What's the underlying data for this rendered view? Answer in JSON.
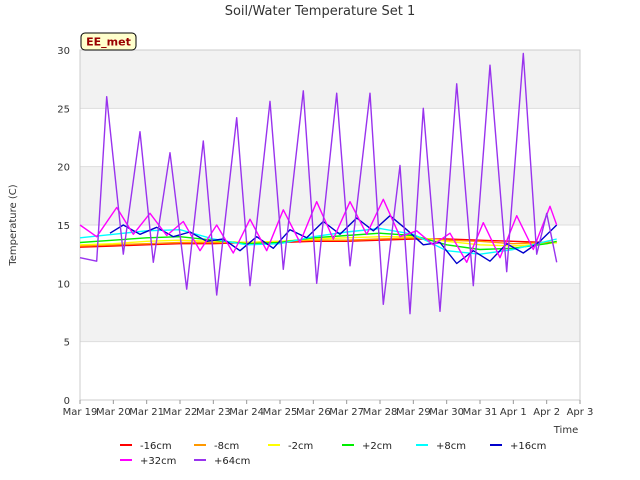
{
  "chart_data": {
    "type": "line",
    "title": "Soil/Water Temperature Set 1",
    "xlabel": "Time",
    "ylabel": "Temperature (C)",
    "badge": "EE_met",
    "ylim": [
      0,
      30
    ],
    "xlim": [
      "Mar 19",
      "Apr 3"
    ],
    "x_ticks": [
      "Mar 19",
      "Mar 20",
      "Mar 21",
      "Mar 22",
      "Mar 23",
      "Mar 24",
      "Mar 25",
      "Mar 26",
      "Mar 27",
      "Mar 28",
      "Mar 29",
      "Mar 30",
      "Mar 31",
      "Apr 1",
      "Apr 2",
      "Apr 3"
    ],
    "y_ticks": [
      0,
      5,
      10,
      15,
      20,
      25,
      30
    ],
    "grid": "horizontal bands",
    "legend_position": "bottom",
    "series": [
      {
        "name": "-16cm",
        "color": "#ff0000",
        "x": [
          "Mar 19",
          "Mar 20",
          "Mar 21",
          "Mar 22",
          "Mar 23",
          "Mar 24",
          "Mar 25",
          "Mar 26",
          "Mar 27",
          "Mar 28",
          "Mar 29",
          "Mar 30",
          "Mar 31",
          "Apr 1",
          "Apr 2",
          "Apr 2.3"
        ],
        "y": [
          13.1,
          13.2,
          13.3,
          13.4,
          13.4,
          13.5,
          13.5,
          13.6,
          13.6,
          13.7,
          13.8,
          13.8,
          13.7,
          13.6,
          13.5,
          13.5
        ]
      },
      {
        "name": "-8cm",
        "color": "#ff9900",
        "x": [
          "Mar 19",
          "Mar 20",
          "Mar 21",
          "Mar 22",
          "Mar 23",
          "Mar 24",
          "Mar 25",
          "Mar 26",
          "Mar 27",
          "Mar 28",
          "Mar 29",
          "Mar 30",
          "Mar 31",
          "Apr 1",
          "Apr 2",
          "Apr 2.3"
        ],
        "y": [
          13.2,
          13.3,
          13.4,
          13.5,
          13.5,
          13.5,
          13.6,
          13.7,
          13.7,
          13.8,
          13.9,
          13.7,
          13.6,
          13.4,
          13.5,
          13.5
        ]
      },
      {
        "name": "-2cm",
        "color": "#ffff00",
        "x": [
          "Mar 19",
          "Mar 20",
          "Mar 21",
          "Mar 22",
          "Mar 23",
          "Mar 24",
          "Mar 25",
          "Mar 26",
          "Mar 27",
          "Mar 28",
          "Mar 29",
          "Mar 30",
          "Mar 31",
          "Apr 1",
          "Apr 2",
          "Apr 2.3"
        ],
        "y": [
          13.3,
          13.4,
          13.6,
          13.7,
          13.6,
          13.5,
          13.6,
          13.8,
          13.9,
          14.0,
          14.0,
          13.6,
          13.3,
          13.2,
          13.4,
          13.5
        ]
      },
      {
        "name": "+2cm",
        "color": "#00ee00",
        "x": [
          "Mar 19",
          "Mar 20",
          "Mar 21",
          "Mar 22",
          "Mar 23",
          "Mar 24",
          "Mar 25",
          "Mar 26",
          "Mar 27",
          "Mar 28",
          "Mar 29",
          "Mar 30",
          "Mar 31",
          "Apr 1",
          "Apr 2",
          "Apr 2.3"
        ],
        "y": [
          13.5,
          13.7,
          13.9,
          14.0,
          13.7,
          13.4,
          13.5,
          13.9,
          14.1,
          14.3,
          14.1,
          13.3,
          12.9,
          13.0,
          13.4,
          13.6
        ]
      },
      {
        "name": "+8cm",
        "color": "#00ffff",
        "x": [
          "Mar 19",
          "Mar 20",
          "Mar 21",
          "Mar 22",
          "Mar 23",
          "Mar 24",
          "Mar 25",
          "Mar 26",
          "Mar 27",
          "Mar 28",
          "Mar 29",
          "Mar 30",
          "Mar 31",
          "Apr 1",
          "Apr 2",
          "Apr 2.3"
        ],
        "y": [
          13.9,
          14.2,
          14.5,
          14.6,
          13.8,
          13.3,
          13.4,
          14.0,
          14.4,
          14.7,
          14.2,
          12.8,
          12.5,
          12.9,
          13.6,
          13.8
        ]
      },
      {
        "name": "+16cm",
        "color": "#0000cc",
        "x": [
          "Mar 19.9",
          "Mar 20.3",
          "Mar 20.8",
          "Mar 21.3",
          "Mar 21.8",
          "Mar 22.3",
          "Mar 22.8",
          "Mar 23.3",
          "Mar 23.8",
          "Mar 24.3",
          "Mar 24.8",
          "Mar 25.3",
          "Mar 25.8",
          "Mar 26.3",
          "Mar 26.8",
          "Mar 27.3",
          "Mar 27.8",
          "Mar 28.3",
          "Mar 28.8",
          "Mar 29.3",
          "Mar 29.8",
          "Mar 30.3",
          "Mar 30.8",
          "Mar 31.3",
          "Mar 31.8",
          "Apr 1.3",
          "Apr 1.8",
          "Apr 2.3"
        ],
        "y": [
          14.3,
          15.0,
          14.2,
          14.8,
          14.0,
          14.4,
          13.6,
          13.8,
          12.8,
          14.0,
          13.0,
          14.6,
          13.9,
          15.3,
          14.2,
          15.6,
          14.5,
          15.8,
          14.6,
          13.3,
          13.5,
          11.7,
          12.8,
          11.9,
          13.4,
          12.6,
          13.6,
          15.0
        ]
      },
      {
        "name": "+32cm",
        "color": "#ff00ff",
        "x": [
          "Mar 19",
          "Mar 19.5",
          "Mar 20.1",
          "Mar 20.6",
          "Mar 21.1",
          "Mar 21.6",
          "Mar 22.1",
          "Mar 22.6",
          "Mar 23.1",
          "Mar 23.6",
          "Mar 24.1",
          "Mar 24.6",
          "Mar 25.1",
          "Mar 25.6",
          "Mar 26.1",
          "Mar 26.6",
          "Mar 27.1",
          "Mar 27.6",
          "Mar 28.1",
          "Mar 28.6",
          "Mar 29.1",
          "Mar 29.6",
          "Mar 30.1",
          "Mar 30.6",
          "Mar 31.1",
          "Mar 31.6",
          "Apr 1.1",
          "Apr 1.6",
          "Apr 2.1",
          "Apr 2.3"
        ],
        "y": [
          15.0,
          14.0,
          16.5,
          14.2,
          16.0,
          14.1,
          15.3,
          12.8,
          15.0,
          12.6,
          15.5,
          12.8,
          16.3,
          13.5,
          17.0,
          13.8,
          17.0,
          14.2,
          17.2,
          14.0,
          14.5,
          13.3,
          14.3,
          11.8,
          15.2,
          12.2,
          15.8,
          12.9,
          16.6,
          15.0
        ]
      },
      {
        "name": "+64cm",
        "color": "#9933ee",
        "x": [
          "Mar 19",
          "Mar 19.5",
          "Mar 19.8",
          "Mar 20.3",
          "Mar 20.8",
          "Mar 21.2",
          "Mar 21.7",
          "Mar 22.2",
          "Mar 22.7",
          "Mar 23.1",
          "Mar 23.7",
          "Mar 24.1",
          "Mar 24.7",
          "Mar 25.1",
          "Mar 25.7",
          "Mar 26.1",
          "Mar 26.7",
          "Mar 27.1",
          "Mar 27.7",
          "Mar 28.1",
          "Mar 28.6",
          "Mar 28.9",
          "Mar 29.3",
          "Mar 29.8",
          "Mar 30.3",
          "Mar 30.8",
          "Mar 31.3",
          "Mar 31.8",
          "Apr 1.3",
          "Apr 1.7",
          "Apr 2.0",
          "Apr 2.3"
        ],
        "y": [
          12.2,
          11.9,
          26.0,
          12.5,
          23.0,
          11.8,
          21.2,
          9.5,
          22.2,
          9.0,
          24.2,
          9.8,
          25.6,
          11.2,
          26.5,
          10.0,
          26.3,
          11.5,
          26.3,
          8.2,
          20.1,
          7.4,
          25.0,
          7.6,
          27.1,
          9.8,
          28.7,
          11.0,
          29.7,
          12.5,
          16.0,
          11.8
        ]
      }
    ]
  }
}
